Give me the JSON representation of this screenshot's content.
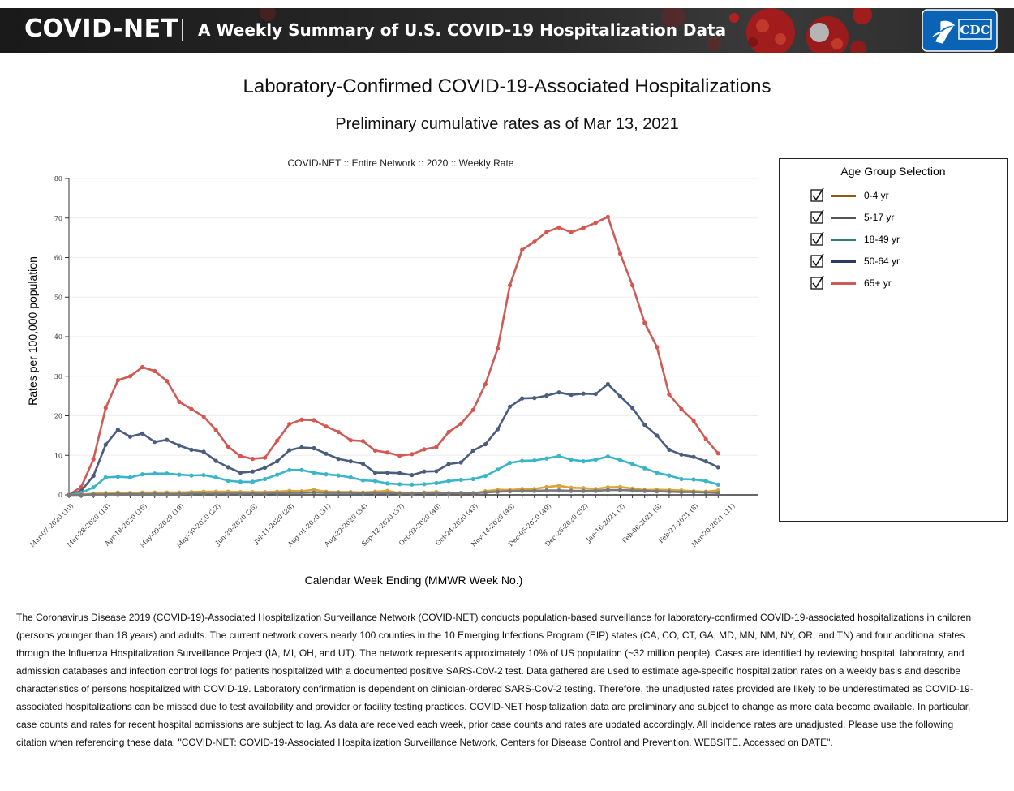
{
  "header": {
    "brand": "COVID-NET",
    "tagline": "A Weekly Summary of U.S. COVID-19 Hospitalization Data",
    "logo_text": "CDC"
  },
  "page": {
    "title": "Laboratory-Confirmed COVID-19-Associated Hospitalizations",
    "subtitle": "Preliminary cumulative rates as of Mar 13, 2021"
  },
  "legend": {
    "title": "Age Group Selection",
    "items": [
      {
        "label": "0-4 yr",
        "color": "#8b5a14",
        "checked": true
      },
      {
        "label": "5-17 yr",
        "color": "#555555",
        "checked": true
      },
      {
        "label": "18-49 yr",
        "color": "#2a7f7a",
        "checked": true
      },
      {
        "label": "50-64 yr",
        "color": "#2e3b5e",
        "checked": true
      },
      {
        "label": "65+ yr",
        "color": "#cd5c57",
        "checked": true
      }
    ]
  },
  "chart_data": {
    "type": "line",
    "title": "COVID-NET :: Entire Network :: 2020 :: Weekly Rate",
    "xlabel": "Calendar Week Ending (MMWR Week No.)",
    "ylabel": "Rates per 100,000 population",
    "ylim": [
      0,
      80
    ],
    "yticks": [
      0,
      10,
      20,
      30,
      40,
      50,
      60,
      70,
      80
    ],
    "grid": true,
    "legend_position": "right",
    "x_labels": [
      "Mar-07-2020 (10)",
      "Mar-28-2020 (13)",
      "Apr-18-2020 (16)",
      "May-09-2020 (19)",
      "May-30-2020 (22)",
      "Jun-20-2020 (25)",
      "Jul-11-2020 (28)",
      "Aug-01-2020 (31)",
      "Aug-22-2020 (34)",
      "Sep-12-2020 (37)",
      "Oct-03-2020 (40)",
      "Oct-24-2020 (43)",
      "Nov-14-2020 (46)",
      "Dec-05-2020 (49)",
      "Dec-26-2020 (52)",
      "Jan-16-2021 (2)",
      "Feb-06-2021 (5)",
      "Feb-27-2021 (8)",
      "Mar-20-2021 (11)"
    ],
    "label_every": 3,
    "series": [
      {
        "name": "65+ yr",
        "color": "#cd5c57",
        "point_color": "#d9544f",
        "values": [
          0,
          2,
          9,
          22,
          29,
          30,
          32.3,
          31.3,
          28.8,
          23.5,
          21.7,
          19.8,
          16.4,
          12.2,
          9.8,
          9.1,
          9.4,
          13.7,
          17.9,
          19,
          18.9,
          17.3,
          15.9,
          13.8,
          13.6,
          11.2,
          10.7,
          9.9,
          10.3,
          11.5,
          12.1,
          15.9,
          18,
          21.5,
          28,
          37,
          53,
          62,
          64,
          66.5,
          67.6,
          66.4,
          67.5,
          68.8,
          70.3,
          61,
          53,
          43.5,
          37.4,
          25.4,
          21.7,
          18.7,
          14.1,
          10.5
        ]
      },
      {
        "name": "50-64 yr",
        "color": "#4a5d7d",
        "point_color": "#4a5d7d",
        "values": [
          0,
          1,
          4.8,
          12.7,
          16.5,
          14.7,
          15.5,
          13.4,
          13.9,
          12.5,
          11.4,
          10.9,
          8.6,
          7,
          5.6,
          5.9,
          6.9,
          8.5,
          11.3,
          12,
          11.8,
          10.4,
          9.1,
          8.5,
          7.9,
          5.6,
          5.6,
          5.5,
          5,
          5.9,
          6,
          7.8,
          8.2,
          11.2,
          12.8,
          16.6,
          22.3,
          24.4,
          24.5,
          25.1,
          25.9,
          25.3,
          25.6,
          25.5,
          28,
          24.9,
          22,
          17.7,
          15,
          11.4,
          10.2,
          9.6,
          8.5,
          7
        ]
      },
      {
        "name": "18-49 yr",
        "color": "#3ab5c8",
        "point_color": "#3ab5c8",
        "values": [
          0,
          0.5,
          1.9,
          4.4,
          4.6,
          4.4,
          5.2,
          5.4,
          5.4,
          5.1,
          4.9,
          5,
          4.4,
          3.6,
          3.3,
          3.3,
          4,
          5.1,
          6.3,
          6.3,
          5.6,
          5.2,
          4.9,
          4.4,
          3.7,
          3.5,
          2.9,
          2.7,
          2.6,
          2.7,
          3,
          3.5,
          3.8,
          4,
          4.8,
          6.4,
          8.1,
          8.6,
          8.7,
          9.2,
          9.8,
          8.9,
          8.5,
          8.9,
          9.7,
          8.8,
          7.8,
          6.7,
          5.6,
          4.9,
          4,
          3.9,
          3.5,
          2.6
        ]
      },
      {
        "name": "0-4 yr",
        "color": "#d9a43a",
        "point_color": "#d9a43a",
        "values": [
          0,
          0.1,
          0.3,
          0.5,
          0.6,
          0.5,
          0.6,
          0.6,
          0.6,
          0.6,
          0.7,
          0.8,
          0.8,
          0.8,
          0.7,
          0.7,
          0.7,
          0.8,
          1,
          0.9,
          1.3,
          0.8,
          0.7,
          0.7,
          0.6,
          0.8,
          1,
          0.5,
          0.4,
          0.6,
          0.7,
          0.4,
          0.5,
          0.4,
          0.9,
          1.3,
          1.2,
          1.5,
          1.5,
          2,
          2.3,
          1.8,
          1.7,
          1.5,
          1.9,
          2,
          1.6,
          1.2,
          1.3,
          1.2,
          1.1,
          0.9,
          0.8,
          1.1
        ]
      },
      {
        "name": "5-17 yr",
        "color": "#7a7a7a",
        "point_color": "#7a7a7a",
        "values": [
          0,
          0,
          0.1,
          0.1,
          0.2,
          0.2,
          0.2,
          0.2,
          0.2,
          0.2,
          0.3,
          0.3,
          0.3,
          0.3,
          0.3,
          0.3,
          0.3,
          0.4,
          0.5,
          0.5,
          0.6,
          0.5,
          0.5,
          0.5,
          0.4,
          0.4,
          0.4,
          0.3,
          0.3,
          0.4,
          0.4,
          0.4,
          0.4,
          0.4,
          0.6,
          0.8,
          0.9,
          1,
          1,
          1.1,
          1.1,
          1,
          1,
          1,
          1.2,
          1.2,
          1.1,
          1,
          0.9,
          0.8,
          0.7,
          0.7,
          0.6,
          0.5
        ]
      }
    ]
  },
  "footnote": {
    "text": "The Coronavirus Disease 2019 (COVID-19)-Associated Hospitalization Surveillance Network (COVID-NET) conducts population-based surveillance for laboratory-confirmed COVID-19-associated hospitalizations in children (persons younger than 18 years) and adults. The current network covers nearly 100 counties in the 10 Emerging Infections Program (EIP) states (CA, CO, CT, GA, MD, MN, NM, NY, OR, and TN) and four additional states through the Influenza Hospitalization Surveillance Project (IA, MI, OH, and UT). The network represents approximately 10% of US population (~32 million people). Cases are identified by reviewing hospital, laboratory, and admission databases and infection control logs for patients hospitalized with a documented positive SARS-CoV-2 test. Data gathered are used to estimate age-specific hospitalization rates on a weekly basis and describe characteristics of persons hospitalized with COVID-19. Laboratory confirmation is dependent on clinician-ordered SARS-CoV-2 testing. Therefore, the unadjusted rates provided are likely to be underestimated as COVID-19-associated hospitalizations can be missed due to test availability and provider or facility testing practices. COVID-NET hospitalization data are preliminary and subject to change as more data become available. In particular, case counts and rates for recent hospital admissions are subject to lag. As data are received each week, prior case counts and rates are updated accordingly. All incidence rates are unadjusted. Please use the following citation when referencing these data: \"COVID-NET: COVID-19-Associated Hospitalization Surveillance Network, Centers for Disease Control and Prevention. WEBSITE. Accessed on DATE\"."
  }
}
